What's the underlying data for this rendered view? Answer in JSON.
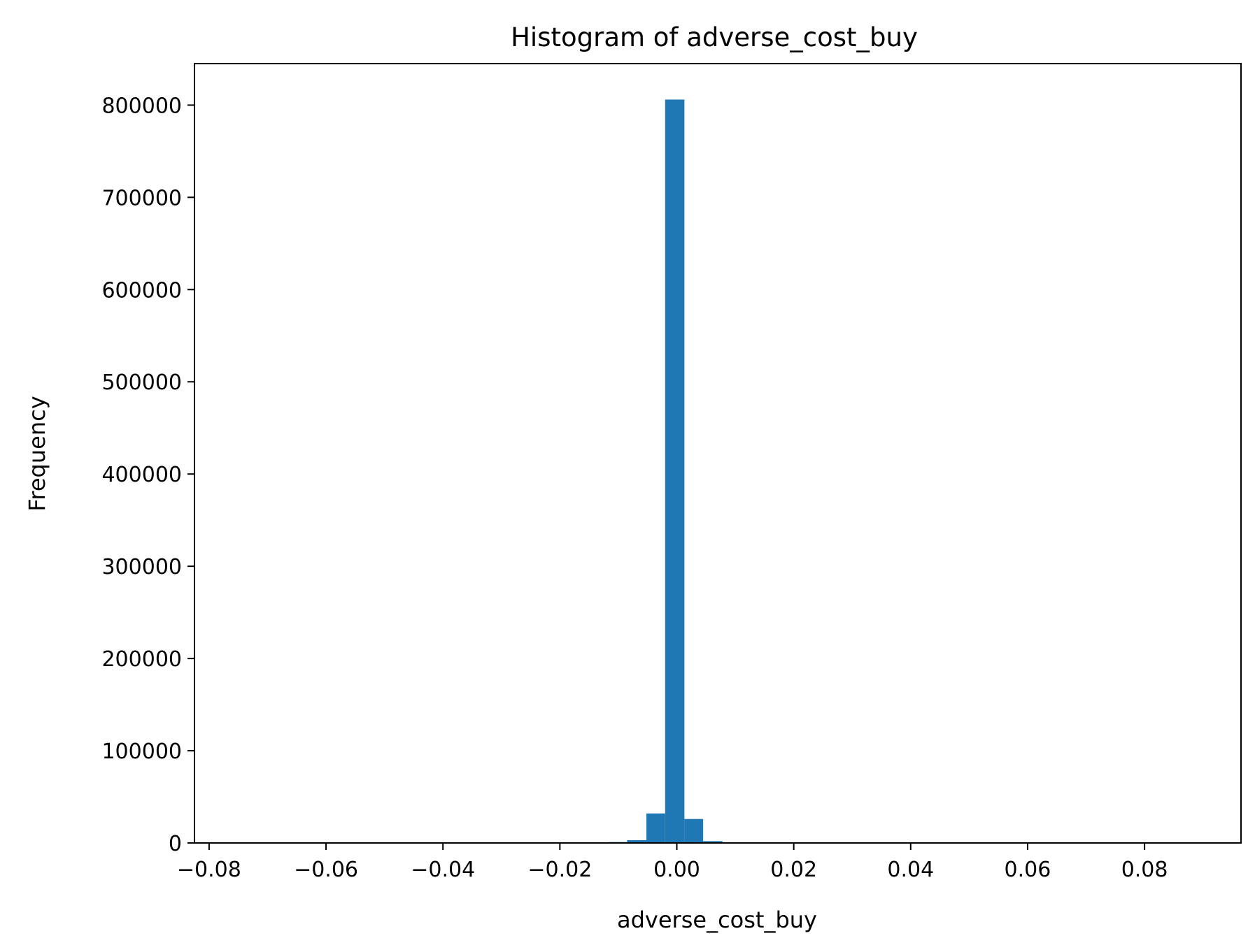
{
  "chart_data": {
    "type": "histogram",
    "title": "Histogram of adverse_cost_buy",
    "xlabel": "adverse_cost_buy",
    "ylabel": "Frequency",
    "xlim": [
      -0.0825,
      0.0965
    ],
    "ylim": [
      0,
      845000
    ],
    "x_ticks": [
      -0.08,
      -0.06,
      -0.04,
      -0.02,
      0.0,
      0.02,
      0.04,
      0.06,
      0.08
    ],
    "x_tick_labels": [
      "−0.08",
      "−0.06",
      "−0.04",
      "−0.02",
      "0.00",
      "0.02",
      "0.04",
      "0.06",
      "0.08"
    ],
    "y_ticks": [
      0,
      100000,
      200000,
      300000,
      400000,
      500000,
      600000,
      700000,
      800000
    ],
    "y_tick_labels": [
      "0",
      "100000",
      "200000",
      "300000",
      "400000",
      "500000",
      "600000",
      "700000",
      "800000"
    ],
    "bin_edges": [
      -0.0117,
      -0.0085,
      -0.0052,
      -0.002,
      0.0013,
      0.0045,
      0.0078,
      0.011
    ],
    "values": [
      1000,
      3000,
      32000,
      806000,
      26000,
      2000,
      500
    ],
    "bar_color": "#1f77b4",
    "grid": false,
    "legend": false
  }
}
